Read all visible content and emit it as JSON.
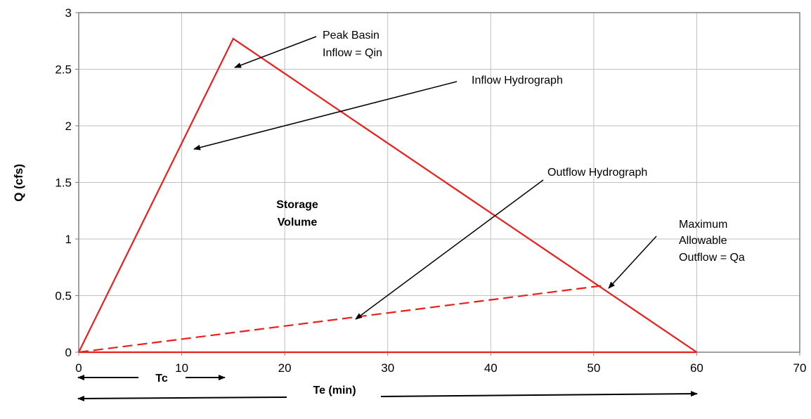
{
  "chart_data": {
    "type": "line",
    "title": "",
    "xlabel": "",
    "ylabel": "Q (cfs)",
    "xlim": [
      0,
      70
    ],
    "ylim": [
      0,
      3
    ],
    "x_ticks": [
      "0",
      "10",
      "20",
      "30",
      "40",
      "50",
      "60",
      "70"
    ],
    "y_ticks": [
      "0",
      "0.5",
      "1",
      "1.5",
      "2",
      "2.5",
      "3"
    ],
    "grid": true,
    "legend": "none",
    "series": [
      {
        "style": "solid",
        "color": "#e8201c",
        "x": [
          0,
          15,
          60
        ],
        "y": [
          0,
          2.77,
          0
        ]
      },
      {
        "style": "dashed",
        "color": "#e8201c",
        "x": [
          0,
          51
        ],
        "y": [
          0,
          0.59
        ]
      },
      {
        "style": "solid",
        "color": "#e8201c",
        "x": [
          0,
          60
        ],
        "y": [
          0,
          0
        ]
      }
    ],
    "annotations": {
      "peak": [
        "Peak Basin",
        "Inflow = Qin"
      ],
      "inflow": "Inflow Hydrograph",
      "outflow": "Outflow Hydrograph",
      "maxallow": [
        "Maximum",
        "Allowable",
        "Outflow = Qa"
      ],
      "storage": [
        "Storage",
        "Volume"
      ],
      "tc": "Tc",
      "te": "Te (min)"
    }
  }
}
